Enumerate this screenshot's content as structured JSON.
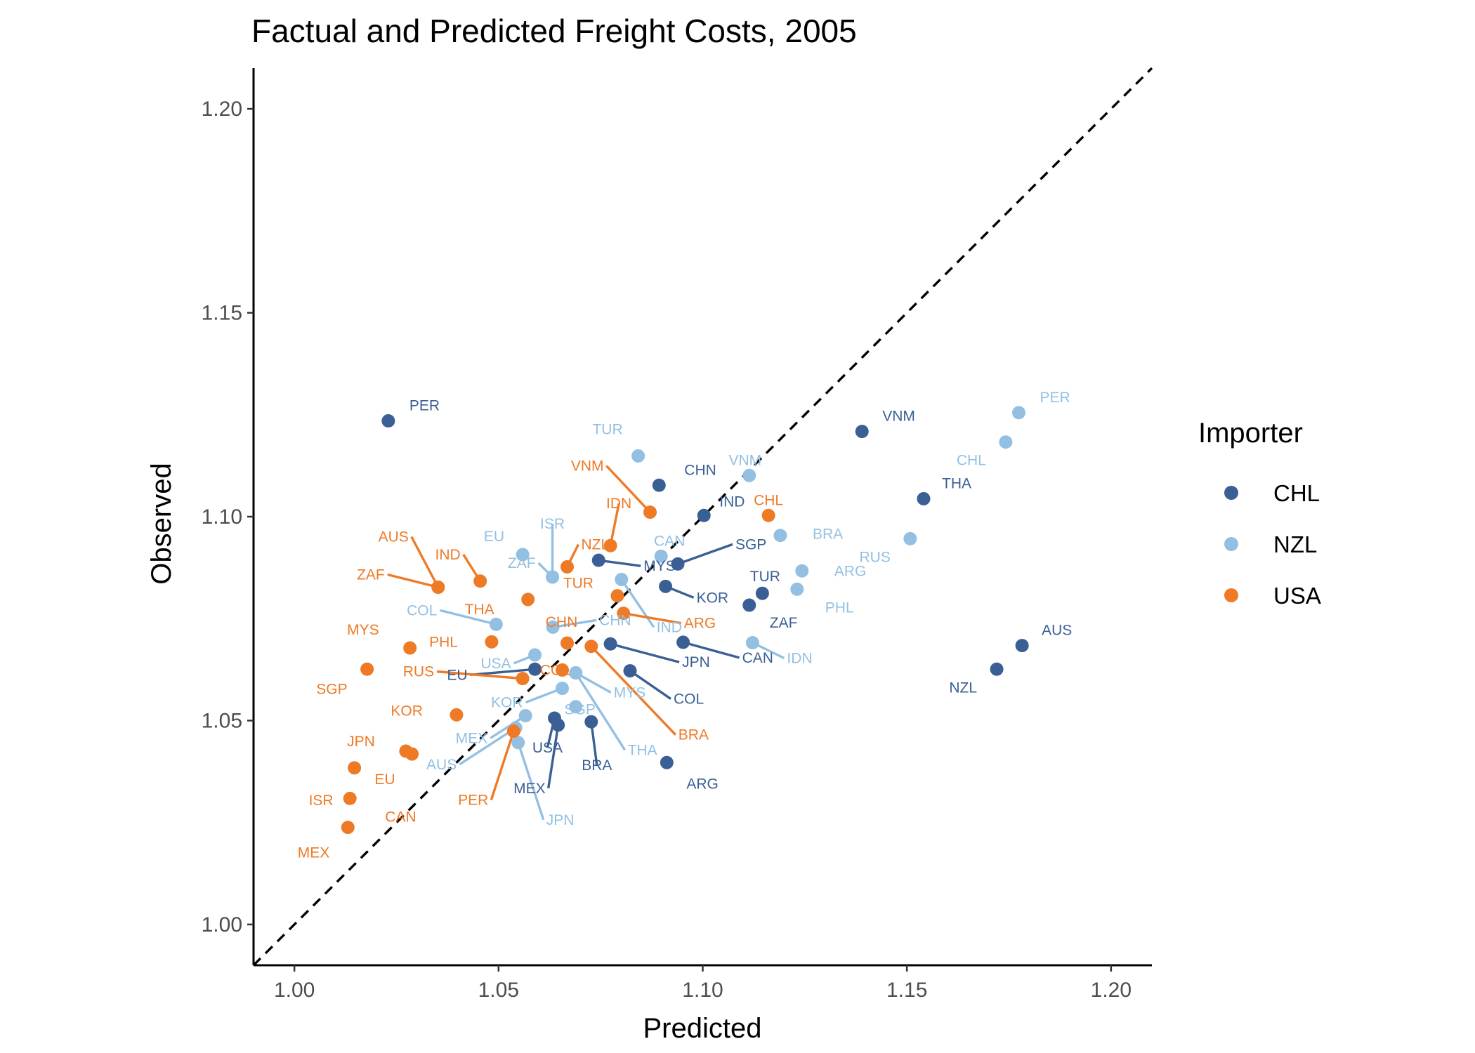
{
  "chart_data": {
    "type": "scatter",
    "title": "Factual and Predicted Freight Costs, 2005",
    "xlabel": "Predicted",
    "ylabel": "Observed",
    "xlim": [
      0.99,
      1.21
    ],
    "ylim": [
      0.99,
      1.21
    ],
    "xticks": [
      "1.00",
      "1.05",
      "1.10",
      "1.15",
      "1.20"
    ],
    "yticks": [
      "1.00",
      "1.05",
      "1.10",
      "1.15",
      "1.20"
    ],
    "reference_line": "y = x (dashed)",
    "grid": false,
    "legend": {
      "title": "Importer",
      "placement": "right"
    },
    "series": [
      {
        "name": "CHL",
        "color": "#3a5f95",
        "points": [
          {
            "label": "PER",
            "x": 1.023,
            "y": 1.1235
          },
          {
            "label": "VNM",
            "x": 1.139,
            "y": 1.1209
          },
          {
            "label": "CHN",
            "x": 1.0893,
            "y": 1.1077
          },
          {
            "label": "THA",
            "x": 1.1541,
            "y": 1.1044
          },
          {
            "label": "IND",
            "x": 1.1003,
            "y": 1.1003
          },
          {
            "label": "MYS",
            "x": 1.0745,
            "y": 1.0893
          },
          {
            "label": "SGP",
            "x": 1.0939,
            "y": 1.0884
          },
          {
            "label": "KOR",
            "x": 1.0909,
            "y": 1.0829
          },
          {
            "label": "TUR",
            "x": 1.1146,
            "y": 1.0812
          },
          {
            "label": "ZAF",
            "x": 1.1114,
            "y": 1.0783
          },
          {
            "label": "AUS",
            "x": 1.1782,
            "y": 1.0684
          },
          {
            "label": "JPN",
            "x": 1.0774,
            "y": 1.0688
          },
          {
            "label": "CAN",
            "x": 1.0952,
            "y": 1.0692
          },
          {
            "label": "NZL",
            "x": 1.172,
            "y": 1.0626
          },
          {
            "label": "EU",
            "x": 1.0589,
            "y": 1.0626
          },
          {
            "label": "COL",
            "x": 1.0822,
            "y": 1.0622
          },
          {
            "label": "USA",
            "x": 1.0637,
            "y": 1.0506
          },
          {
            "label": "MEX",
            "x": 1.0646,
            "y": 1.0489
          },
          {
            "label": "BRA",
            "x": 1.0727,
            "y": 1.0497
          },
          {
            "label": "ARG",
            "x": 1.0912,
            "y": 1.0397
          }
        ]
      },
      {
        "name": "NZL",
        "color": "#93c0e2",
        "points": [
          {
            "label": "PER",
            "x": 1.1774,
            "y": 1.1255
          },
          {
            "label": "CHL",
            "x": 1.1742,
            "y": 1.1183
          },
          {
            "label": "TUR",
            "x": 1.0842,
            "y": 1.1149
          },
          {
            "label": "VNM",
            "x": 1.1114,
            "y": 1.1101
          },
          {
            "label": "BRA",
            "x": 1.119,
            "y": 1.0954
          },
          {
            "label": "RUS",
            "x": 1.1508,
            "y": 1.0946
          },
          {
            "label": "EU",
            "x": 1.0559,
            "y": 1.0907
          },
          {
            "label": "CAN",
            "x": 1.0898,
            "y": 1.0903
          },
          {
            "label": "ARG",
            "x": 1.1243,
            "y": 1.0867
          },
          {
            "label": "ISR",
            "x": 1.0632,
            "y": 1.0852
          },
          {
            "label": "ZAF",
            "x": 1.0632,
            "y": 1.0852
          },
          {
            "label": "IND",
            "x": 1.0801,
            "y": 1.0846
          },
          {
            "label": "PHL",
            "x": 1.1231,
            "y": 1.0822
          },
          {
            "label": "COL",
            "x": 1.0494,
            "y": 1.0736
          },
          {
            "label": "CHN",
            "x": 1.0633,
            "y": 1.0729
          },
          {
            "label": "IDN",
            "x": 1.1122,
            "y": 1.0691
          },
          {
            "label": "USA",
            "x": 1.0589,
            "y": 1.0661
          },
          {
            "label": "MYS",
            "x": 1.0689,
            "y": 1.0617
          },
          {
            "label": "KOR",
            "x": 1.0656,
            "y": 1.0579
          },
          {
            "label": "SGP",
            "x": 1.0689,
            "y": 1.0534
          },
          {
            "label": "THA",
            "x": 1.0689,
            "y": 1.0617
          },
          {
            "label": "MEX",
            "x": 1.0566,
            "y": 1.0512
          },
          {
            "label": "AUS",
            "x": 1.0542,
            "y": 1.0482
          },
          {
            "label": "JPN",
            "x": 1.0548,
            "y": 1.0446
          }
        ]
      },
      {
        "name": "USA",
        "color": "#ee7a26",
        "points": [
          {
            "label": "VNM",
            "x": 1.0871,
            "y": 1.1011
          },
          {
            "label": "CHL",
            "x": 1.1161,
            "y": 1.1003
          },
          {
            "label": "IDN",
            "x": 1.0774,
            "y": 1.0929
          },
          {
            "label": "NZL",
            "x": 1.0668,
            "y": 1.0877
          },
          {
            "label": "AUS",
            "x": 1.0352,
            "y": 1.0827
          },
          {
            "label": "IND",
            "x": 1.0455,
            "y": 1.0842
          },
          {
            "label": "TUR",
            "x": 1.0791,
            "y": 1.0806
          },
          {
            "label": "ZAF",
            "x": 1.0352,
            "y": 1.0827
          },
          {
            "label": "THA",
            "x": 1.0572,
            "y": 1.0797
          },
          {
            "label": "CHN",
            "x": 1.0668,
            "y": 1.069
          },
          {
            "label": "ARG",
            "x": 1.0806,
            "y": 1.0763
          },
          {
            "label": "MYS",
            "x": 1.0283,
            "y": 1.0678
          },
          {
            "label": "PHL",
            "x": 1.0483,
            "y": 1.0693
          },
          {
            "label": "COL",
            "x": 1.0656,
            "y": 1.0624
          },
          {
            "label": "SGP",
            "x": 1.0178,
            "y": 1.0626
          },
          {
            "label": "RUS",
            "x": 1.0559,
            "y": 1.0603
          },
          {
            "label": "BRA",
            "x": 1.0727,
            "y": 1.0682
          },
          {
            "label": "KOR",
            "x": 1.0397,
            "y": 1.0514
          },
          {
            "label": "PER",
            "x": 1.0537,
            "y": 1.0474
          },
          {
            "label": "JPN",
            "x": 1.0273,
            "y": 1.0425
          },
          {
            "label": "EU",
            "x": 1.0288,
            "y": 1.0418
          },
          {
            "label": "ISR",
            "x": 1.0147,
            "y": 1.0384
          },
          {
            "label": "CAN",
            "x": 1.0136,
            "y": 1.0309
          },
          {
            "label": "MEX",
            "x": 1.0131,
            "y": 1.0238
          }
        ]
      }
    ]
  }
}
